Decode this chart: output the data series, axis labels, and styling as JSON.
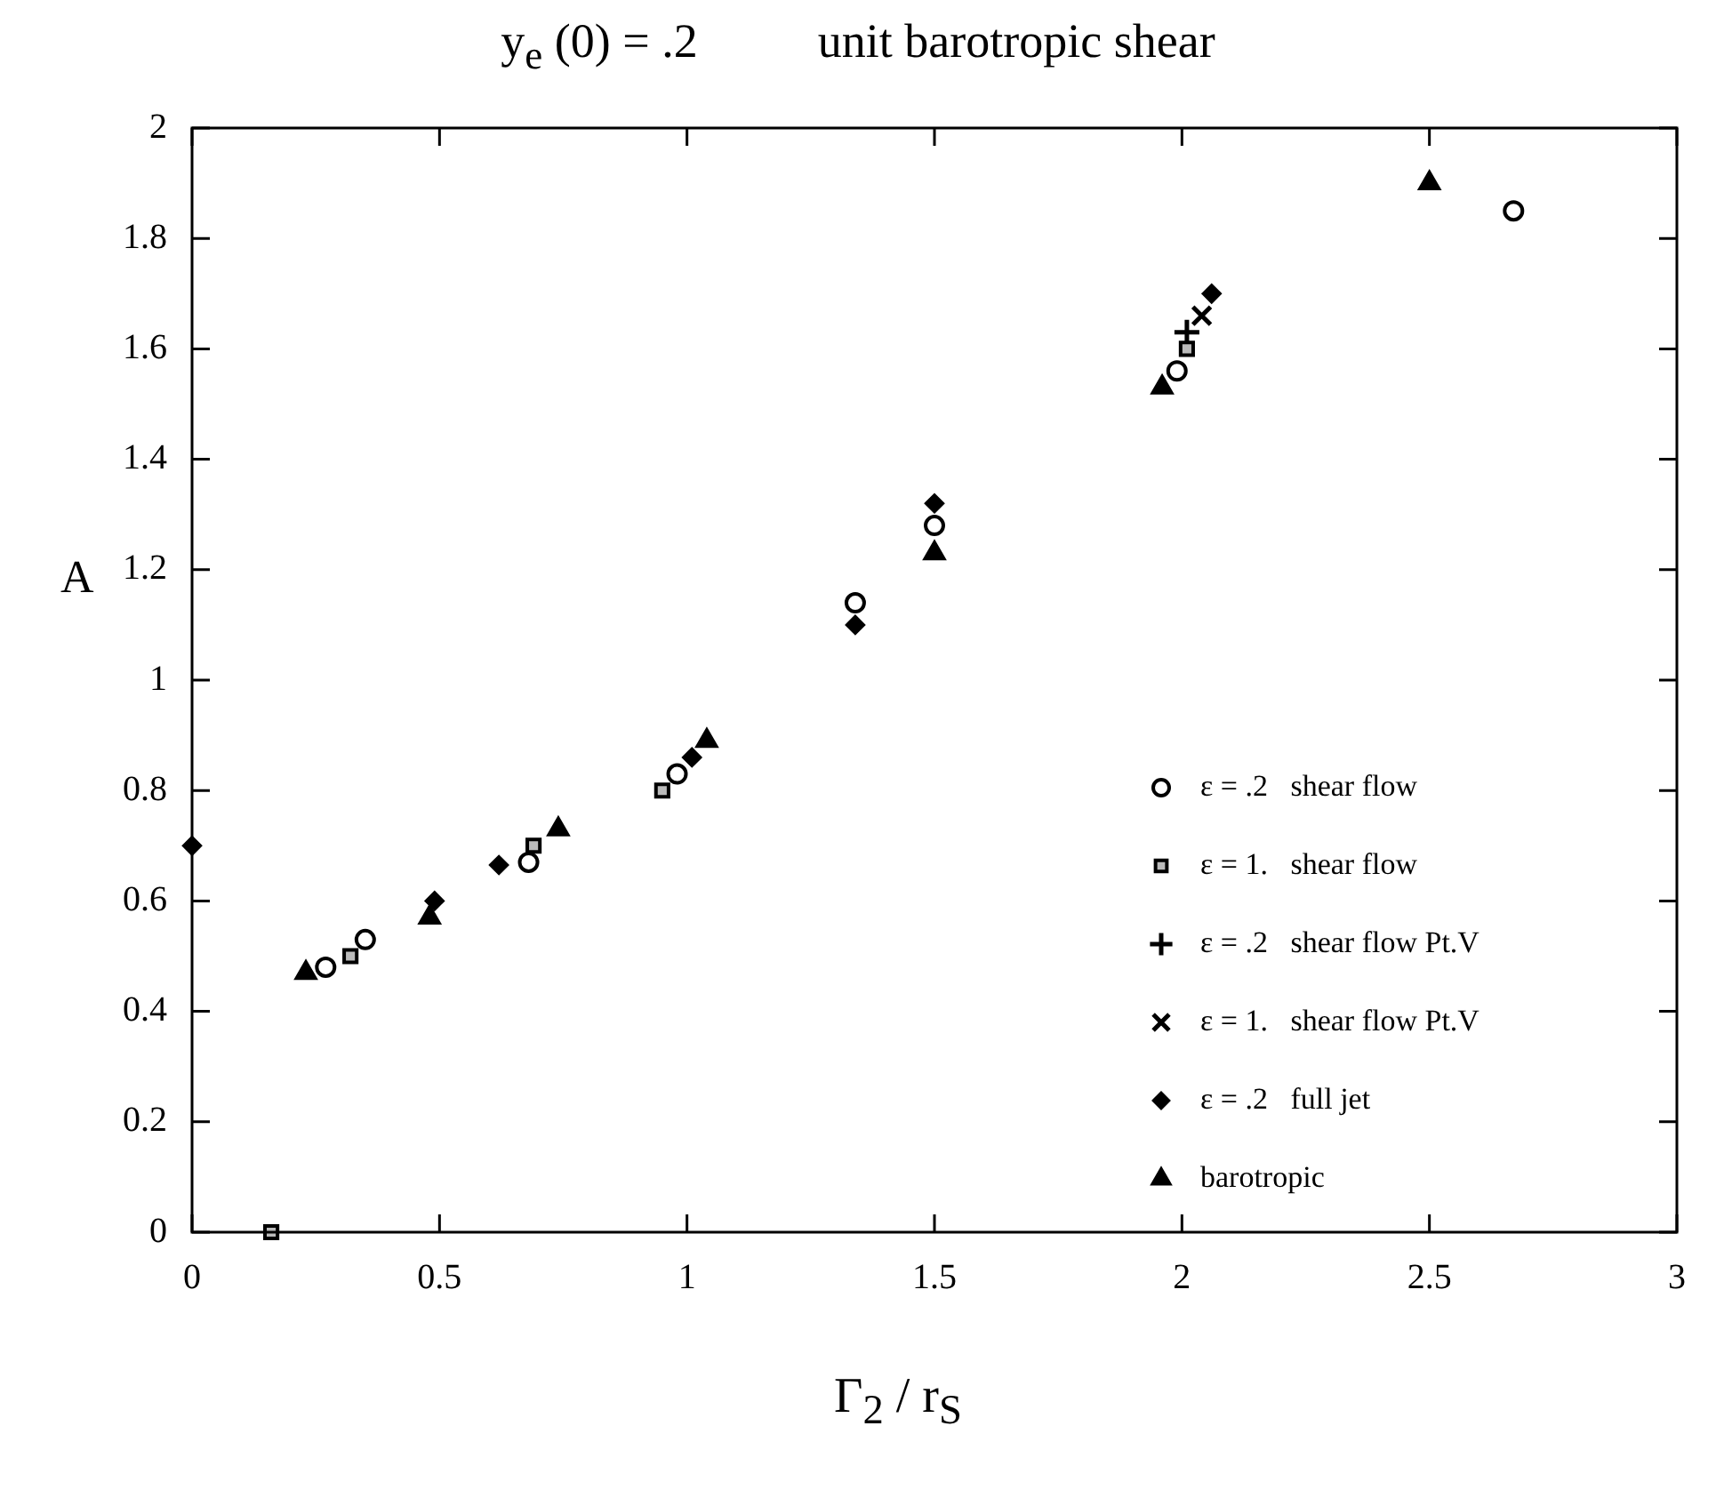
{
  "chart_data": {
    "type": "scatter",
    "title": "y$_{e}$ (0) = .2          unit barotropic shear",
    "xlabel": "Γ$_{2}$ / r$_{S}$",
    "ylabel": "A",
    "xlim": [
      0,
      3
    ],
    "xticks": [
      0,
      0.5,
      1,
      1.5,
      2,
      2.5,
      3
    ],
    "ylim": [
      0,
      2
    ],
    "yticks": [
      0,
      0.2,
      0.4,
      0.6,
      0.8,
      1,
      1.2,
      1.4,
      1.6,
      1.8,
      2
    ],
    "grid": false,
    "legend": "bottom right",
    "series": [
      {
        "name": "ε = .2   shear flow",
        "color": "#000000",
        "marker": "circle",
        "x": [
          0.27,
          0.35,
          0.68,
          0.98,
          1.34,
          1.5,
          1.99,
          2.67
        ],
        "values": [
          0.48,
          0.53,
          0.67,
          0.83,
          1.14,
          1.28,
          1.56,
          1.85
        ]
      },
      {
        "name": "ε = 1.   shear flow",
        "color": "#000000",
        "marker": "square",
        "x": [
          0.16,
          0.32,
          0.69,
          0.95,
          2.01
        ],
        "values": [
          0,
          0.5,
          0.7,
          0.8,
          1.6
        ]
      },
      {
        "name": "ε = .2   shear flow Pt.V",
        "color": "#000000",
        "marker": "cross",
        "x": [
          2.01
        ],
        "values": [
          1.63
        ]
      },
      {
        "name": "ε = 1.   shear flow Pt.V",
        "color": "#000000",
        "marker": "x",
        "x": [
          2.04
        ],
        "values": [
          1.66
        ]
      },
      {
        "name": "ε = .2   full jet",
        "color": "#000000",
        "marker": "diamond",
        "x": [
          0,
          0.49,
          0.62,
          1.01,
          1.34,
          1.5,
          2.06
        ],
        "values": [
          0.7,
          0.6,
          0.665,
          0.86,
          1.1,
          1.32,
          1.7
        ]
      },
      {
        "name": "barotropic",
        "color": "#000000",
        "marker": "triangle",
        "x": [
          0.23,
          0.48,
          0.74,
          1.04,
          1.5,
          1.96,
          2.5
        ],
        "values": [
          0.47,
          0.57,
          0.73,
          0.89,
          1.23,
          1.53,
          1.9
        ]
      }
    ]
  }
}
